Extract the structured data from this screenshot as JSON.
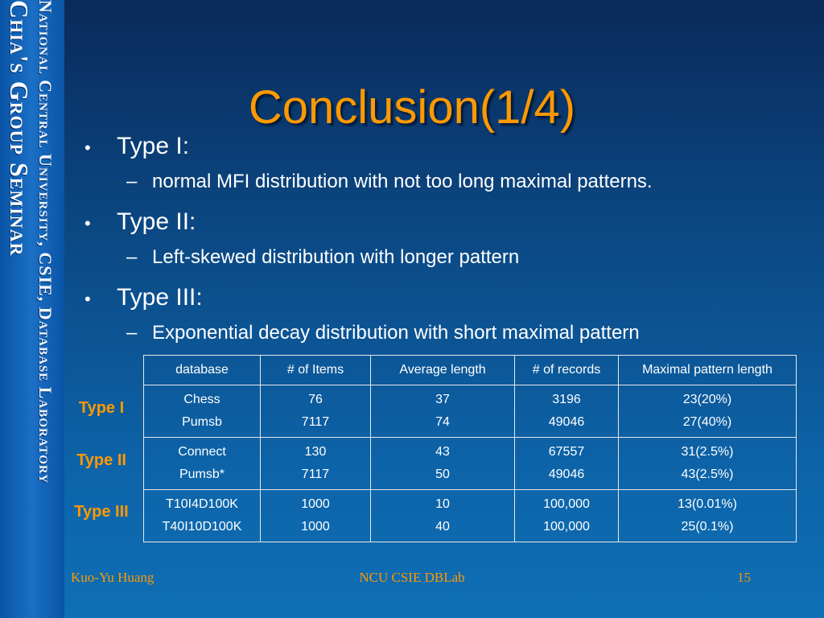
{
  "side_banner": {
    "line1": "National Central University, CSIE, Database Laboratory",
    "line2": "Chia's Group Seminar"
  },
  "title": "Conclusion(1/4)",
  "bullets": [
    {
      "label": "Type I:",
      "sub": "normal MFI distribution with not too long maximal patterns."
    },
    {
      "label": "Type II:",
      "sub": "Left-skewed distribution with longer pattern"
    },
    {
      "label": "Type III:",
      "sub": "Exponential decay distribution with short maximal pattern"
    }
  ],
  "table": {
    "headers": [
      "database",
      "# of Items",
      "Average length",
      "# of records",
      "Maximal pattern length"
    ],
    "groups": [
      {
        "type": "Type I",
        "rows": [
          [
            "Chess",
            "76",
            "37",
            "3196",
            "23(20%)"
          ],
          [
            "Pumsb",
            "7117",
            "74",
            "49046",
            "27(40%)"
          ]
        ]
      },
      {
        "type": "Type II",
        "rows": [
          [
            "Connect",
            "130",
            "43",
            "67557",
            "31(2.5%)"
          ],
          [
            "Pumsb*",
            "7117",
            "50",
            "49046",
            "43(2.5%)"
          ]
        ]
      },
      {
        "type": "Type III",
        "rows": [
          [
            "T10I4D100K",
            "1000",
            "10",
            "100,000",
            "13(0.01%)"
          ],
          [
            "T40I10D100K",
            "1000",
            "40",
            "100,000",
            "25(0.1%)"
          ]
        ]
      }
    ]
  },
  "footer": {
    "author": "Kuo-Yu Huang",
    "center": "NCU CSIE DBLab",
    "page": "15"
  },
  "colors": {
    "accent": "#ff9900",
    "background": "#0b4a86",
    "text": "#ffffff"
  }
}
